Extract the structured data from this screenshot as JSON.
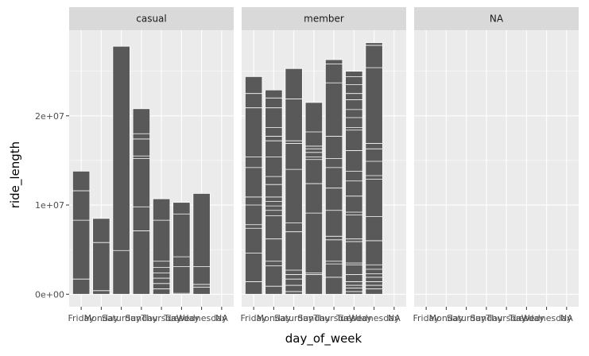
{
  "chart_data": {
    "type": "bar",
    "subtype": "faceted-stacked-bar",
    "xlabel": "day_of_week",
    "ylabel": "ride_length",
    "categories": [
      "Friday",
      "Monday",
      "Saturday",
      "Sunday",
      "Thursday",
      "Tuesday",
      "Wednesday",
      "NA"
    ],
    "y_ticks": [
      0,
      10000000,
      20000000
    ],
    "y_tick_labels": [
      "0e+00",
      "1e+07",
      "2e+07"
    ],
    "ylim": [
      -1400000,
      29600000
    ],
    "grid": true,
    "legend": "none",
    "facets": [
      {
        "label": "casual",
        "totals": [
          13800000,
          8500000,
          27800000,
          20800000,
          10700000,
          10300000,
          11300000,
          0
        ],
        "segment_breaks": [
          [
            1700000,
            8300000,
            11600000
          ],
          [
            400000,
            5800000
          ],
          [
            4900000
          ],
          [
            7100000,
            9800000,
            15200000,
            15500000,
            17400000,
            18000000
          ],
          [
            600000,
            1200000,
            1800000,
            2400000,
            3000000,
            3700000,
            8300000
          ],
          [
            100000,
            3100000,
            4200000,
            9000000
          ],
          [
            800000,
            1100000,
            3100000
          ],
          []
        ]
      },
      {
        "label": "member",
        "totals": [
          24400000,
          22900000,
          25300000,
          21500000,
          26300000,
          25000000,
          28200000,
          0
        ],
        "segment_breaks": [
          [
            1400000,
            4600000,
            7400000,
            7800000,
            10000000,
            10900000,
            14200000,
            15400000,
            20900000,
            22500000
          ],
          [
            900000,
            3200000,
            3700000,
            6200000,
            8800000,
            9400000,
            9900000,
            10400000,
            10900000,
            12300000,
            13200000,
            15400000,
            17200000,
            17700000,
            18700000,
            20900000,
            22000000
          ],
          [
            300000,
            1000000,
            1700000,
            2200000,
            2700000,
            7000000,
            8000000,
            14000000,
            16900000,
            17200000,
            21900000
          ],
          [
            2200000,
            2400000,
            9100000,
            12400000,
            15100000,
            15400000,
            15900000,
            16300000,
            16600000,
            18200000
          ],
          [
            1900000,
            3400000,
            3700000,
            6100000,
            6500000,
            9400000,
            11900000,
            14200000,
            15200000,
            17700000,
            23700000,
            25800000
          ],
          [
            300000,
            700000,
            1000000,
            1400000,
            2200000,
            3300000,
            3500000,
            5900000,
            6200000,
            8900000,
            9200000,
            11000000,
            12700000,
            13800000,
            16100000,
            18400000,
            18700000,
            19800000,
            20700000,
            21800000,
            22500000,
            23500000,
            24400000
          ],
          [
            600000,
            1000000,
            1400000,
            1900000,
            2300000,
            2800000,
            3300000,
            6000000,
            8700000,
            12900000,
            13300000,
            14900000,
            16300000,
            16900000,
            25400000,
            27900000
          ],
          []
        ]
      },
      {
        "label": "NA",
        "totals": [
          0,
          0,
          0,
          0,
          0,
          0,
          0,
          0
        ],
        "segment_breaks": [
          [],
          [],
          [],
          [],
          [],
          [],
          [],
          []
        ]
      }
    ],
    "colors": {
      "bar_fill": "#595959",
      "segment_line": "#ffffff",
      "panel_bg": "#ebebeb",
      "strip_bg": "#d9d9d9",
      "grid": "#ffffff"
    }
  }
}
